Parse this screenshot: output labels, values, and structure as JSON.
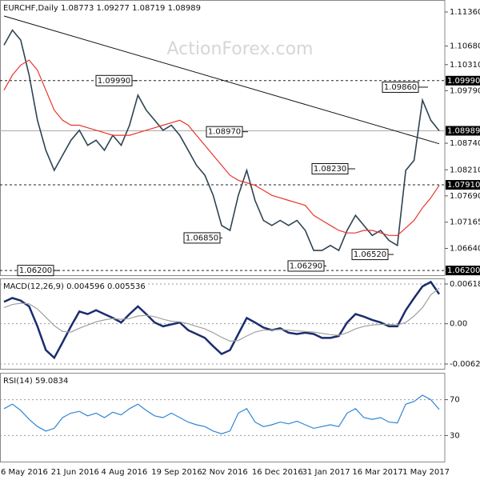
{
  "chart_data": [
    {
      "type": "line",
      "title": "EURCHF,Daily 1.08773 1.09277 1.08719 1.08989",
      "watermark": "ActionForex.com",
      "categories": [
        "6 May 2016",
        null,
        null,
        null,
        null,
        null,
        "21 Jun 2016",
        null,
        null,
        null,
        null,
        null,
        "4 Aug 2016",
        null,
        null,
        null,
        null,
        null,
        "19 Sep 2016",
        null,
        null,
        null,
        null,
        null,
        "2 Nov 2016",
        null,
        null,
        null,
        null,
        null,
        "16 Dec 2016",
        null,
        null,
        null,
        null,
        null,
        "31 Jan 2017",
        null,
        null,
        null,
        null,
        null,
        "16 Mar 2017",
        null,
        null,
        null,
        null,
        null,
        "1 May 2017",
        null,
        null,
        null,
        null
      ],
      "series": [
        {
          "color": "#2d4452",
          "values": [
            1.107,
            1.11,
            1.108,
            1.101,
            1.092,
            1.086,
            1.082,
            1.085,
            1.088,
            1.09,
            1.087,
            1.088,
            1.086,
            1.089,
            1.087,
            1.091,
            1.097,
            1.094,
            1.092,
            1.09,
            1.091,
            1.089,
            1.086,
            1.083,
            1.081,
            1.077,
            1.071,
            1.07,
            1.077,
            1.082,
            1.076,
            1.072,
            1.071,
            1.072,
            1.071,
            1.072,
            1.07,
            1.066,
            1.066,
            1.067,
            1.066,
            1.07,
            1.073,
            1.071,
            1.069,
            1.07,
            1.068,
            1.067,
            1.082,
            1.084,
            1.096,
            1.092,
            1.08989
          ]
        },
        {
          "color": "#e8352b",
          "values": [
            1.098,
            1.101,
            1.103,
            1.104,
            1.102,
            1.098,
            1.094,
            1.092,
            1.091,
            1.091,
            1.0905,
            1.09,
            1.0895,
            1.089,
            1.089,
            1.089,
            1.0895,
            1.09,
            1.0905,
            1.091,
            1.0915,
            1.092,
            1.091,
            1.089,
            1.087,
            1.085,
            1.083,
            1.081,
            1.08,
            1.0795,
            1.079,
            1.078,
            1.077,
            1.0765,
            1.076,
            1.0755,
            1.075,
            1.073,
            1.072,
            1.071,
            1.07,
            1.0695,
            1.0695,
            1.07,
            1.07,
            1.0695,
            1.069,
            1.069,
            1.0705,
            1.072,
            1.0745,
            1.0765,
            1.079
          ]
        }
      ],
      "ylim": [
        1.0609,
        1.116
      ],
      "yticks": [
        {
          "value": 1.1136,
          "label": "1.11360"
        },
        {
          "value": 1.1068,
          "label": "1.10680"
        },
        {
          "value": 1.1031,
          "label": "1.10310"
        },
        {
          "value": 1.0979,
          "label": "1.09790"
        },
        {
          "value": 1.0874,
          "label": "1.08740"
        },
        {
          "value": 1.0821,
          "label": "1.08210"
        },
        {
          "value": 1.0769,
          "label": "1.07690"
        },
        1.07165,
        {
          "value": 1.0664,
          "label": "1.06640"
        }
      ],
      "levels": [
        {
          "value": 1.0999,
          "label": "1.09990",
          "style": "dashed"
        },
        {
          "value": 1.08989,
          "label": "1.08989",
          "style": "solid"
        },
        {
          "value": 1.0791,
          "label": "1.07910",
          "style": "dashed"
        },
        {
          "value": 1.062,
          "label": "1.06200",
          "style": "dashed"
        }
      ],
      "annotations": [
        {
          "value": 1.0999,
          "label": "1.09990"
        },
        {
          "value": 1.0897,
          "label": "1.08970"
        },
        {
          "value": 1.0685,
          "label": "1.06850"
        },
        {
          "value": 1.0823,
          "label": "1.08230"
        },
        {
          "value": 1.0629,
          "label": "1.06290"
        },
        {
          "value": 1.0652,
          "label": "1.06520"
        },
        {
          "value": 1.0986,
          "label": "1.09860"
        },
        {
          "value": 1.062,
          "label": "1.06200"
        }
      ],
      "trendline": [
        1.1128,
        1.0873
      ]
    },
    {
      "type": "line",
      "title": "MACD(12,26,9) 0.004596 0.005536",
      "series": [
        {
          "color": "#1a2d6e",
          "values": [
            0.0034,
            0.004,
            0.0036,
            0.0027,
            -0.0004,
            -0.0041,
            -0.0053,
            -0.0029,
            -0.0004,
            0.0019,
            0.0015,
            0.0021,
            0.0015,
            0.0009,
            0.0002,
            0.0015,
            0.0027,
            0.0015,
            0.0002,
            -0.0004,
            -0.0001,
            0.0002,
            -0.001,
            -0.0016,
            -0.0022,
            -0.0035,
            -0.0047,
            -0.0041,
            -0.0016,
            0.0009,
            0.0002,
            -0.0006,
            -0.001,
            -0.0007,
            -0.0014,
            -0.0016,
            -0.0014,
            -0.0016,
            -0.0022,
            -0.0022,
            -0.0019,
            0.0002,
            0.0015,
            0.0011,
            0.0006,
            0.0002,
            -0.0004,
            -0.0004,
            0.0021,
            0.004,
            0.0058,
            0.0065,
            0.004596
          ]
        },
        {
          "color": "#a0a0a0",
          "values": [
            0.0025,
            0.003,
            0.0032,
            0.0031,
            0.0023,
            0.001,
            -0.0003,
            -0.0012,
            -0.0013,
            -0.0007,
            -0.0002,
            0.0003,
            0.0006,
            0.0008,
            0.0007,
            0.0008,
            0.0012,
            0.0013,
            0.0011,
            0.0007,
            0.0004,
            0.0003,
            0,
            -0.0004,
            -0.0008,
            -0.0014,
            -0.0021,
            -0.0027,
            -0.0026,
            -0.0019,
            -0.0013,
            -0.001,
            -0.001,
            -0.0009,
            -0.001,
            -0.0011,
            -0.0012,
            -0.0013,
            -0.0015,
            -0.0017,
            -0.0018,
            -0.0014,
            -0.0008,
            -0.0004,
            -0.0002,
            -0.0001,
            -0.0001,
            -0.0002,
            0.0002,
            0.0012,
            0.0025,
            0.0045,
            0.005536
          ]
        }
      ],
      "ylim": [
        -0.00713,
        0.00705
      ],
      "yticks": [
        0.00618,
        {
          "value": 0,
          "label": "0.00"
        },
        -0.00626
      ]
    },
    {
      "type": "line",
      "title": "RSI(14) 59.0834",
      "series": [
        {
          "color": "#2f86d6",
          "values": [
            60,
            65,
            58,
            48,
            40,
            35,
            38,
            50,
            55,
            57,
            52,
            55,
            50,
            56,
            53,
            60,
            65,
            58,
            52,
            50,
            55,
            50,
            45,
            42,
            40,
            35,
            32,
            35,
            55,
            60,
            45,
            40,
            42,
            45,
            43,
            46,
            42,
            38,
            40,
            42,
            40,
            55,
            60,
            50,
            48,
            50,
            45,
            44,
            65,
            68,
            75,
            70,
            59.0834
          ]
        }
      ],
      "ylim": [
        0,
        100
      ],
      "yticks": [
        70,
        30
      ]
    }
  ]
}
